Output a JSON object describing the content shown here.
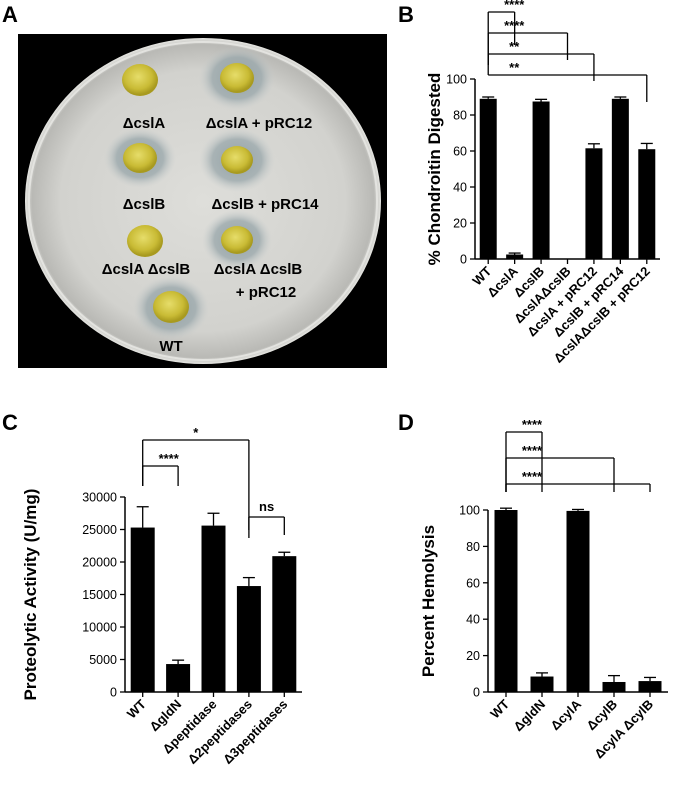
{
  "panels": [
    "A",
    "B",
    "C",
    "D"
  ],
  "plate": {
    "labels": [
      {
        "id": "cslA",
        "line1": "ΔcslA",
        "line2": ""
      },
      {
        "id": "cslA_pRC12",
        "line1": "ΔcslA + pRC12",
        "line2": ""
      },
      {
        "id": "cslB",
        "line1": "ΔcslB",
        "line2": ""
      },
      {
        "id": "cslB_pRC14",
        "line1": "ΔcslB + pRC14",
        "line2": ""
      },
      {
        "id": "cslAcslB",
        "line1": "ΔcslA ΔcslB",
        "line2": ""
      },
      {
        "id": "cslAcslB_pRC12",
        "line1": "ΔcslA ΔcslB",
        "line2": "+ pRC12"
      },
      {
        "id": "WT",
        "line1": "WT",
        "line2": ""
      }
    ]
  },
  "chart_data": [
    {
      "panel": "B",
      "type": "bar",
      "ylabel": "% Chondroitin Digested",
      "ylim": [
        0,
        100
      ],
      "yticks": [
        0,
        20,
        40,
        60,
        80,
        100
      ],
      "categories": [
        "WT",
        "ΔcslA",
        "ΔcslB",
        "ΔcslAΔcslB",
        "ΔcslA + pRC12",
        "ΔcslB + pRC14",
        "ΔcslAΔcslB + pRC12"
      ],
      "values": [
        89,
        2.5,
        87.5,
        0,
        61.5,
        89,
        61
      ],
      "errors": [
        1,
        0.8,
        1.2,
        0,
        2.5,
        1,
        3.2
      ],
      "significance": [
        {
          "from": 0,
          "to": 1,
          "label": "****"
        },
        {
          "from": 0,
          "to": 3,
          "label": "****"
        },
        {
          "from": 0,
          "to": 4,
          "label": "**"
        },
        {
          "from": 0,
          "to": 6,
          "label": "**"
        }
      ]
    },
    {
      "panel": "C",
      "type": "bar",
      "ylabel": "Proteolytic Activity (U/mg)",
      "ylim": [
        0,
        30000
      ],
      "yticks": [
        0,
        5000,
        10000,
        15000,
        20000,
        25000,
        30000
      ],
      "categories": [
        "WT",
        "ΔgldN",
        "Δpeptidase",
        "Δ2peptidases",
        "Δ3peptidases"
      ],
      "values": [
        25300,
        4300,
        25600,
        16300,
        20900
      ],
      "errors": [
        3200,
        600,
        1900,
        1300,
        600
      ],
      "significance": [
        {
          "from": 0,
          "to": 1,
          "label": "****"
        },
        {
          "from": 0,
          "to": 3,
          "label": "*"
        },
        {
          "from": 3,
          "to": 4,
          "label": "ns"
        }
      ]
    },
    {
      "panel": "D",
      "type": "bar",
      "ylabel": "Percent Hemolysis",
      "ylim": [
        0,
        100
      ],
      "yticks": [
        0,
        20,
        40,
        60,
        80,
        100
      ],
      "categories": [
        "WT",
        "ΔgldN",
        "ΔcylA",
        "ΔcylB",
        "ΔcylA ΔcylB"
      ],
      "values": [
        100,
        8.5,
        99.5,
        5.5,
        6
      ],
      "errors": [
        1,
        2,
        0.8,
        3.5,
        2
      ],
      "significance": [
        {
          "from": 0,
          "to": 1,
          "label": "****"
        },
        {
          "from": 0,
          "to": 3,
          "label": "****"
        },
        {
          "from": 0,
          "to": 4,
          "label": "****"
        }
      ]
    }
  ]
}
